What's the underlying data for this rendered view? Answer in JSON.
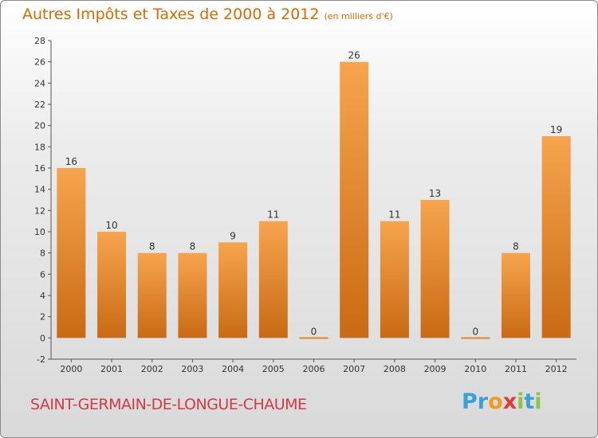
{
  "title": "Autres Impôts et Taxes de 2000 à 2012",
  "subtitle": "(en milliers d'€)",
  "commune": "SAINT-GERMAIN-DE-LONGUE-CHAUME",
  "logo": {
    "text": "Proxiti",
    "letters": [
      "P",
      "r",
      "o",
      "x",
      "i",
      "t",
      "i"
    ],
    "colors": [
      "#3aa0d8",
      "#3aa0d8",
      "#f29a1a",
      "#e23a3a",
      "#8cc63f",
      "#3aa0d8",
      "#8cc63f"
    ]
  },
  "colors": {
    "bar_light": "#f7a44e",
    "bar_dark": "#c96a14",
    "title": "#d86a00",
    "commune": "#d23a4a"
  },
  "chart_data": {
    "type": "bar",
    "title": "Autres Impôts et Taxes de 2000 à 2012",
    "subtitle": "(en milliers d'€)",
    "xlabel": "",
    "ylabel": "",
    "categories": [
      "2000",
      "2001",
      "2002",
      "2003",
      "2004",
      "2005",
      "2006",
      "2007",
      "2008",
      "2009",
      "2010",
      "2011",
      "2012"
    ],
    "values": [
      16,
      10,
      8,
      8,
      9,
      11,
      0,
      26,
      11,
      13,
      0,
      8,
      19
    ],
    "data_labels": [
      "16",
      "10",
      "8",
      "8",
      "9",
      "11",
      "0",
      "26",
      "11",
      "13",
      "0",
      "8",
      "19"
    ],
    "ylim": [
      -2,
      28
    ],
    "yticks": [
      -2,
      0,
      2,
      4,
      6,
      8,
      10,
      12,
      14,
      16,
      18,
      20,
      22,
      24,
      26,
      28
    ],
    "grid": false,
    "legend": "none"
  }
}
